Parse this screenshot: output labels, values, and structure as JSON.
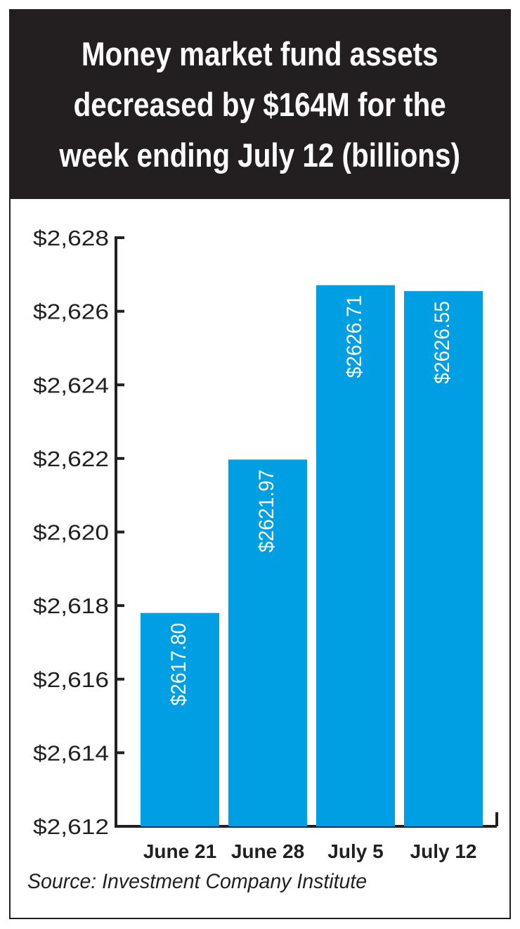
{
  "chart_data": {
    "type": "bar",
    "title": "Money market fund assets\ndecreased by $164M for the\nweek ending July 12 (billions)",
    "categories": [
      "June 21",
      "June 28",
      "July 5",
      "July 12"
    ],
    "values": [
      2617.8,
      2621.97,
      2626.71,
      2626.55
    ],
    "data_labels": [
      "$2617.80",
      "$2621.97",
      "$2626.71",
      "$2626.55"
    ],
    "ylim": [
      2612,
      2628
    ],
    "yticks": [
      2612,
      2614,
      2616,
      2618,
      2620,
      2622,
      2624,
      2626,
      2628
    ],
    "ytick_labels": [
      "$2,612",
      "$2,614",
      "$2,616",
      "$2,618",
      "$2,620",
      "$2,622",
      "$2,624",
      "$2,626",
      "$2,628"
    ],
    "xlabel": "",
    "ylabel": "",
    "grid": false,
    "bar_color": "#009fe3",
    "label_color": "#ffffff",
    "axis_color": "#231f20"
  },
  "source": "Source: Investment Company Institute"
}
